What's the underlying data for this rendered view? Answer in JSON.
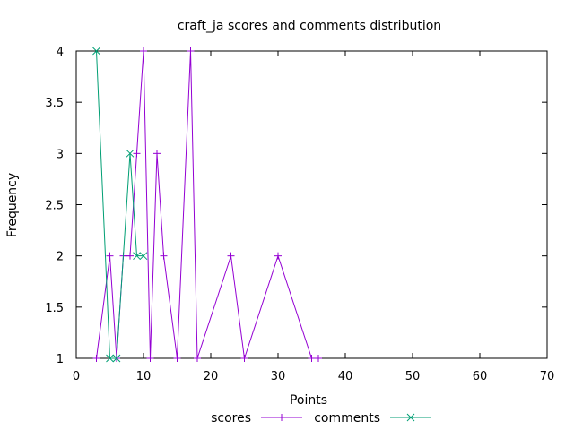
{
  "chart_data": {
    "type": "line",
    "title": "craft_ja scores and comments distribution",
    "xlabel": "Points",
    "ylabel": "Frequency",
    "xlim": [
      0,
      70
    ],
    "ylim": [
      1,
      4
    ],
    "xticks": [
      0,
      10,
      20,
      30,
      40,
      50,
      60,
      70
    ],
    "yticks": [
      1,
      1.5,
      2,
      2.5,
      3,
      3.5,
      4
    ],
    "xtick_labels": [
      "0",
      "10",
      "20",
      "30",
      "40",
      "50",
      "60",
      "70"
    ],
    "ytick_labels": [
      "1",
      "1.5",
      "2",
      "2.5",
      "3",
      "3.5",
      "4"
    ],
    "grid": false,
    "legend_position": "bottom-center",
    "series": [
      {
        "name": "scores",
        "color": "#9400d3",
        "marker": "plus",
        "x": [
          3,
          5,
          6,
          7,
          8,
          9,
          10,
          11,
          12,
          13,
          15,
          17,
          18,
          23,
          25,
          30,
          35,
          36
        ],
        "y": [
          1,
          2,
          1,
          2,
          2,
          3,
          4,
          1,
          3,
          2,
          1,
          4,
          1,
          2,
          1,
          2,
          1,
          1
        ]
      },
      {
        "name": "comments",
        "color": "#009e73",
        "marker": "cross",
        "x": [
          3,
          5,
          6,
          8,
          9,
          10
        ],
        "y": [
          4,
          1,
          1,
          3,
          2,
          2
        ]
      }
    ]
  }
}
